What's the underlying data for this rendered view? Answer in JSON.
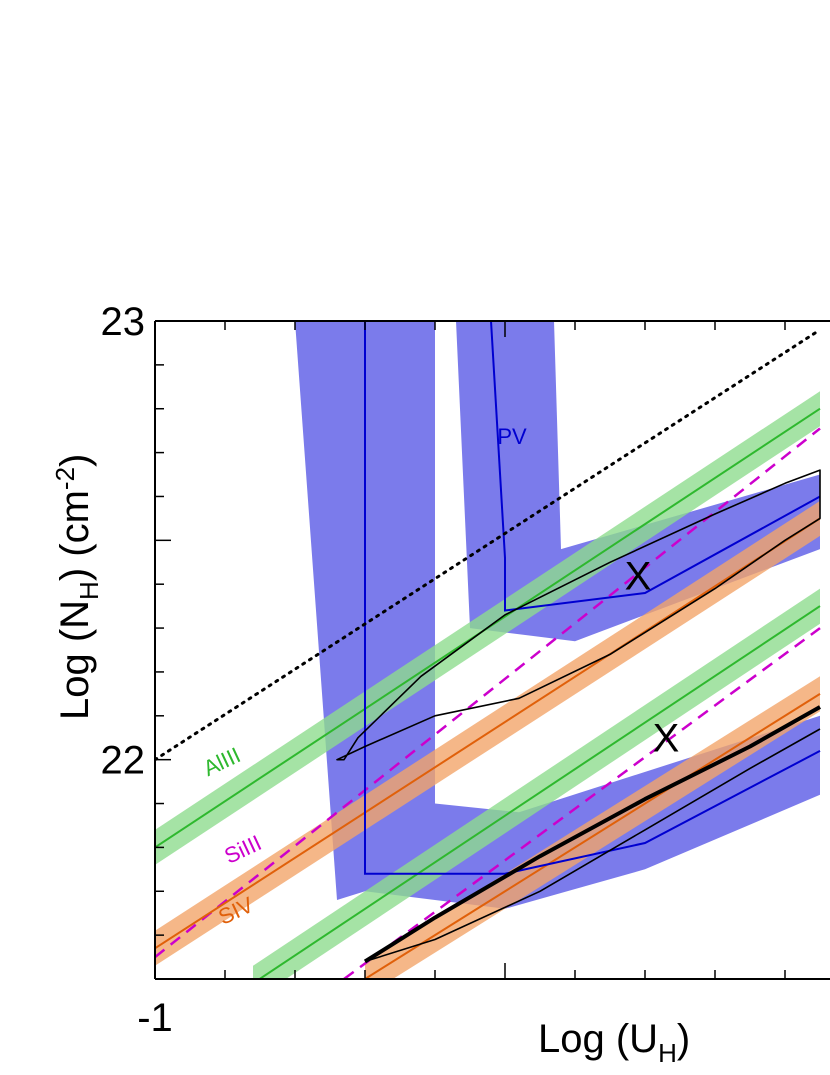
{
  "chart_data": {
    "type": "line",
    "xlabel": "Log (U",
    "xlabel_sub": "H",
    "xlabel_close": ")",
    "ylabel": "Log (N",
    "ylabel_sub": "H",
    "ylabel_mid": ")  (cm",
    "ylabel_sup": "-2",
    "ylabel_close": ")",
    "xlim": [
      -1,
      -0.05
    ],
    "ylim": [
      21.5,
      23.0
    ],
    "x_ticks_labeled": [
      {
        "value": -1,
        "label": "-1"
      }
    ],
    "y_ticks_labeled": [
      {
        "value": 22,
        "label": "22"
      },
      {
        "value": 23,
        "label": "23"
      }
    ],
    "x_minor_step": 0.1,
    "y_minor_step": 0.1,
    "y_major_step": 0.5,
    "colors": {
      "AlIII": "#2eb82e",
      "AlIII_band": "#8fdc8f",
      "SiIII": "#cc00cc",
      "SIV": "#e0600a",
      "SIV_band": "#f2a56a",
      "PV": "#0000d0",
      "PV_band": "#6464e8",
      "contour": "#000000",
      "dotted": "#000000"
    },
    "series": [
      {
        "name": "AlIII",
        "style": "solid-band",
        "color_key": "AlIII",
        "band_half_width": 0.04,
        "x": [
          -1.0,
          -0.05
        ],
        "y": [
          21.8,
          22.8
        ]
      },
      {
        "name": "",
        "style": "solid-band",
        "color_key": "AlIII",
        "band_half_width": 0.04,
        "x": [
          -0.86,
          -0.05
        ],
        "y": [
          21.49,
          22.35
        ]
      },
      {
        "name": "SiIII",
        "style": "dashed",
        "color_key": "SiIII",
        "x": [
          -1.0,
          -0.05
        ],
        "y": [
          21.55,
          22.755
        ]
      },
      {
        "name": "",
        "style": "dashed",
        "color_key": "SiIII",
        "x": [
          -0.73,
          -0.05
        ],
        "y": [
          21.5,
          22.3
        ]
      },
      {
        "name": "SIV",
        "style": "solid-band",
        "color_key": "SIV",
        "band_half_width": 0.04,
        "x": [
          -1.0,
          -0.05
        ],
        "y": [
          21.57,
          22.55
        ]
      },
      {
        "name": "",
        "style": "solid-band",
        "color_key": "SIV",
        "band_half_width": 0.04,
        "x": [
          -0.7,
          -0.05
        ],
        "y": [
          21.5,
          22.15
        ]
      },
      {
        "name": "PV",
        "style": "center-line",
        "color_key": "PV",
        "x": [
          -0.7,
          -0.7,
          -0.5,
          -0.3,
          -0.05
        ],
        "y": [
          23.0,
          21.74,
          21.74,
          21.81,
          22.02
        ]
      },
      {
        "name": "PV",
        "style": "center-line",
        "color_key": "PV",
        "x": [
          -0.52,
          -0.5,
          -0.5,
          -0.3,
          -0.05
        ],
        "y": [
          23.0,
          22.46,
          22.34,
          22.38,
          22.6
        ]
      },
      {
        "name": "",
        "style": "dotted",
        "color_key": "dotted",
        "x": [
          -1.0,
          -0.05
        ],
        "y": [
          22.0,
          22.98
        ]
      }
    ],
    "pv_bands": [
      {
        "x": [
          -0.83,
          -0.64,
          -0.6,
          -0.6,
          -0.48,
          -0.05,
          -0.05,
          -0.3,
          -0.5,
          -0.7,
          -0.74,
          -0.8
        ],
        "y": [
          23.0,
          23.0,
          23.0,
          21.9,
          21.88,
          22.1,
          21.92,
          21.75,
          21.66,
          21.7,
          21.68,
          23.0
        ]
      },
      {
        "x": [
          -0.63,
          -0.43,
          -0.42,
          -0.05,
          -0.05,
          -0.4,
          -0.55,
          -0.57
        ],
        "y": [
          23.0,
          23.0,
          22.48,
          22.65,
          22.48,
          22.27,
          22.3,
          23.0
        ]
      }
    ],
    "contours": [
      {
        "width": 1.6,
        "closed": true,
        "x": [
          -0.73,
          -0.71,
          -0.62,
          -0.5,
          -0.35,
          -0.2,
          -0.1,
          -0.05,
          -0.05,
          -0.1,
          -0.2,
          -0.35,
          -0.48,
          -0.6,
          -0.7,
          -0.74,
          -0.73
        ],
        "y": [
          22.0,
          22.05,
          22.19,
          22.33,
          22.45,
          22.56,
          22.63,
          22.66,
          22.55,
          22.5,
          22.39,
          22.24,
          22.14,
          22.1,
          22.03,
          22.0,
          22.0
        ]
      },
      {
        "width": 4.0,
        "closed": false,
        "x": [
          -0.7,
          -0.6,
          -0.45,
          -0.3,
          -0.15,
          -0.05
        ],
        "y": [
          21.54,
          21.64,
          21.78,
          21.91,
          22.03,
          22.12
        ]
      },
      {
        "width": 1.6,
        "closed": false,
        "x": [
          -0.7,
          -0.6,
          -0.45,
          -0.3,
          -0.15,
          -0.05
        ],
        "y": [
          21.54,
          21.59,
          21.7,
          21.84,
          21.98,
          22.07
        ]
      }
    ],
    "markers": [
      {
        "label": "X",
        "x": -0.31,
        "y": 22.42
      },
      {
        "label": "X",
        "x": -0.27,
        "y": 22.05
      }
    ],
    "annotations": [
      {
        "text": "AlIII",
        "color_key": "AlIII",
        "x": -0.9,
        "y": 21.98,
        "rotate": -25
      },
      {
        "text": "SiIII",
        "color_key": "SiIII",
        "x": -0.87,
        "y": 21.78,
        "rotate": -25
      },
      {
        "text": "SIV",
        "color_key": "SIV",
        "x": -0.88,
        "y": 21.64,
        "rotate": -25
      },
      {
        "text": "PV",
        "color_key": "PV",
        "x": -0.49,
        "y": 22.72,
        "rotate": 0
      }
    ]
  }
}
